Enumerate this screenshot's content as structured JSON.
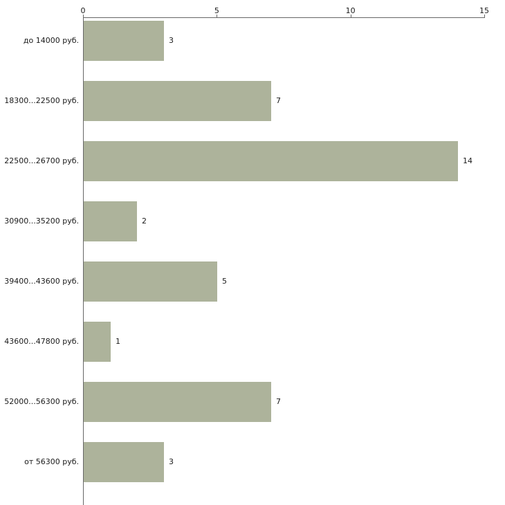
{
  "chart_data": {
    "type": "bar",
    "orientation": "horizontal",
    "title": "",
    "xlabel": "",
    "ylabel": "",
    "categories": [
      "до 14000 руб.",
      "18300...22500 руб.",
      "22500...26700 руб.",
      "30900...35200 руб.",
      "39400...43600 руб.",
      "43600...47800 руб.",
      "52000...56300 руб.",
      "от 56300 руб."
    ],
    "values": [
      3,
      7,
      14,
      2,
      5,
      1,
      7,
      3
    ],
    "xlim": [
      0,
      15
    ],
    "x_ticks": [
      0,
      5,
      10,
      15
    ],
    "grid": false,
    "legend": false,
    "bar_color": "#adb39b",
    "axis_color": "#666666",
    "text_color": "#1a1a1a",
    "background_color": "#ffffff"
  }
}
